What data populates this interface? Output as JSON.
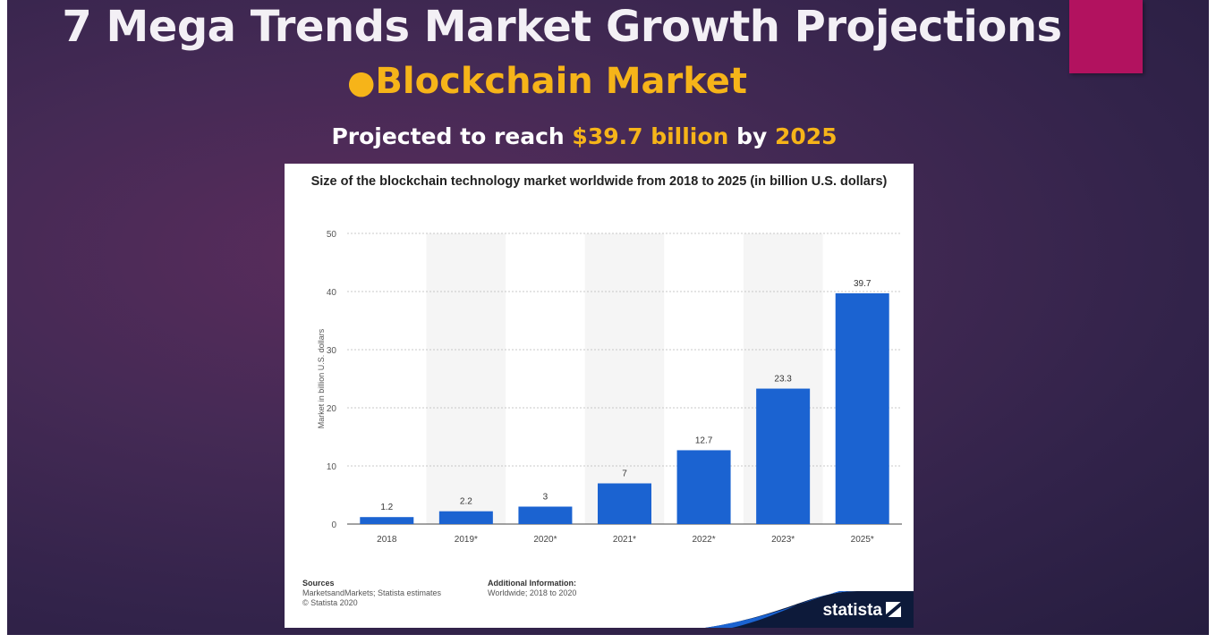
{
  "slide": {
    "title": "7 Mega Trends Market Growth Projections",
    "bullet": "●",
    "subtitle": "Blockchain Market",
    "projection_prefix": "Projected to reach ",
    "projection_value": "$39.7 billion",
    "projection_mid": " by ",
    "projection_year": "2025",
    "accent_color": "#b2125f",
    "highlight_color": "#f6b419"
  },
  "chart_data": {
    "type": "bar",
    "title": "Size of the blockchain technology market worldwide from 2018 to 2025 (in billion U.S. dollars)",
    "categories": [
      "2018",
      "2019*",
      "2020*",
      "2021*",
      "2022*",
      "2023*",
      "2025*"
    ],
    "values": [
      1.2,
      2.2,
      3,
      7,
      12.7,
      23.3,
      39.7
    ],
    "data_labels": [
      "1.2",
      "2.2",
      "3",
      "7",
      "12.7",
      "23.3",
      "39.7"
    ],
    "xlabel": "",
    "ylabel": "Market in billion U.S. dollars",
    "ylim": [
      0,
      50
    ],
    "yticks": [
      0,
      10,
      20,
      30,
      40,
      50
    ],
    "grid": true,
    "bar_color": "#1b63d1"
  },
  "footer": {
    "sources_heading": "Sources",
    "sources_line1": "MarketsandMarkets; Statista estimates",
    "sources_line2": "© Statista 2020",
    "additional_heading": "Additional Information:",
    "additional_line1": "Worldwide; 2018 to 2020",
    "logo_text": "statista"
  }
}
